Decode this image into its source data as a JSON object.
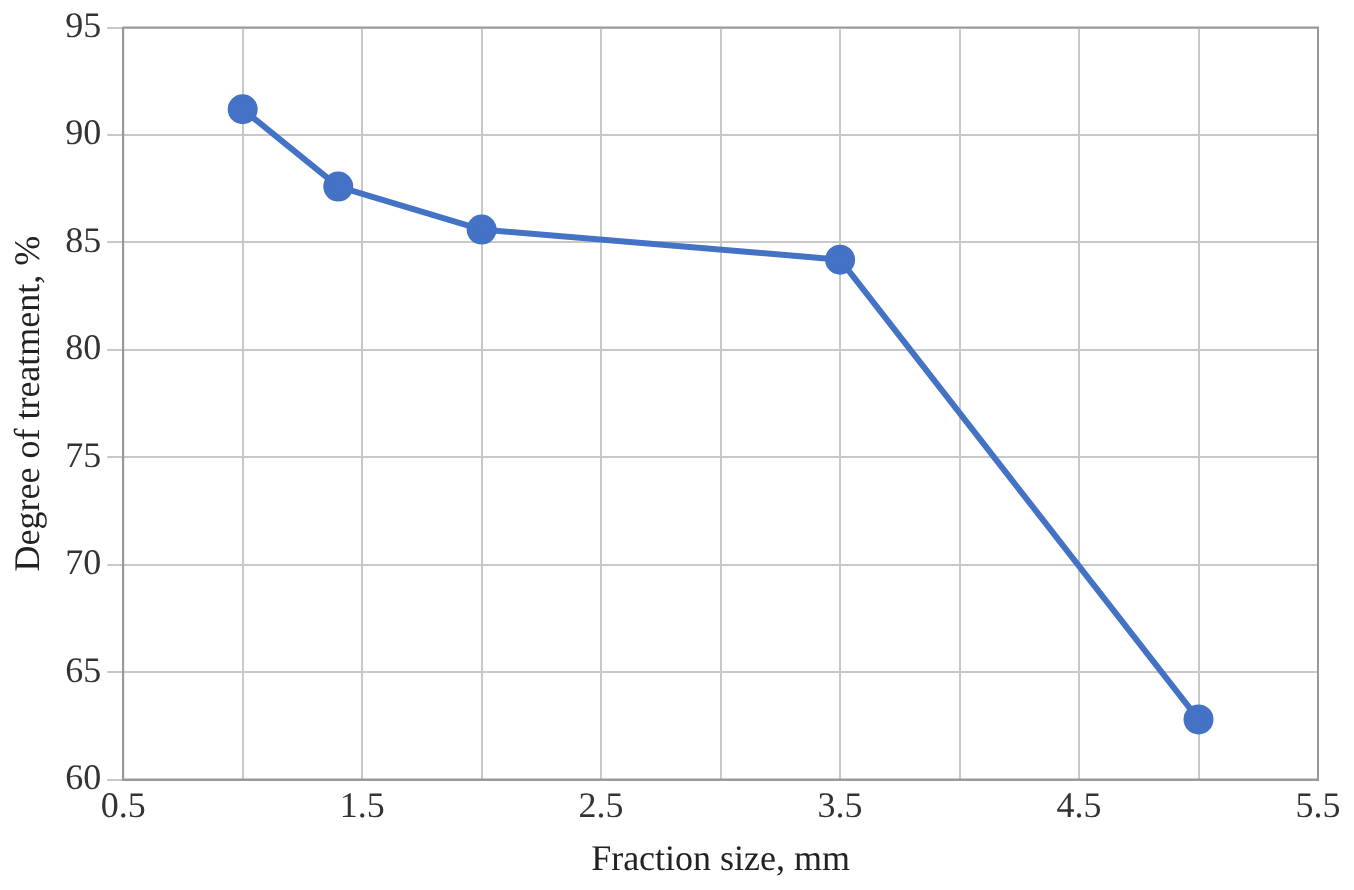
{
  "chart_data": {
    "type": "line",
    "xlabel": "Fraction size, mm",
    "ylabel": "Degree of treatment, %",
    "x": [
      1.0,
      1.4,
      2.0,
      3.5,
      5.0
    ],
    "series": [
      {
        "color": "#4472c4",
        "values": [
          91.2,
          87.6,
          85.6,
          84.2,
          62.8
        ]
      }
    ],
    "xlim": [
      0.5,
      5.5
    ],
    "xticks": [
      0.5,
      {
        "value": 1,
        "label": null
      },
      1.5,
      {
        "value": 2,
        "label": null
      },
      2.5,
      {
        "value": 3,
        "label": null
      },
      3.5,
      {
        "value": 4,
        "label": null
      },
      4.5,
      {
        "value": 5,
        "label": null
      },
      5.5
    ],
    "ylim": [
      60,
      95
    ],
    "yticks": [
      60,
      65,
      70,
      75,
      80,
      85,
      90,
      95
    ],
    "grid": true,
    "legend": false,
    "marker": "circle",
    "line_style": "solid"
  }
}
